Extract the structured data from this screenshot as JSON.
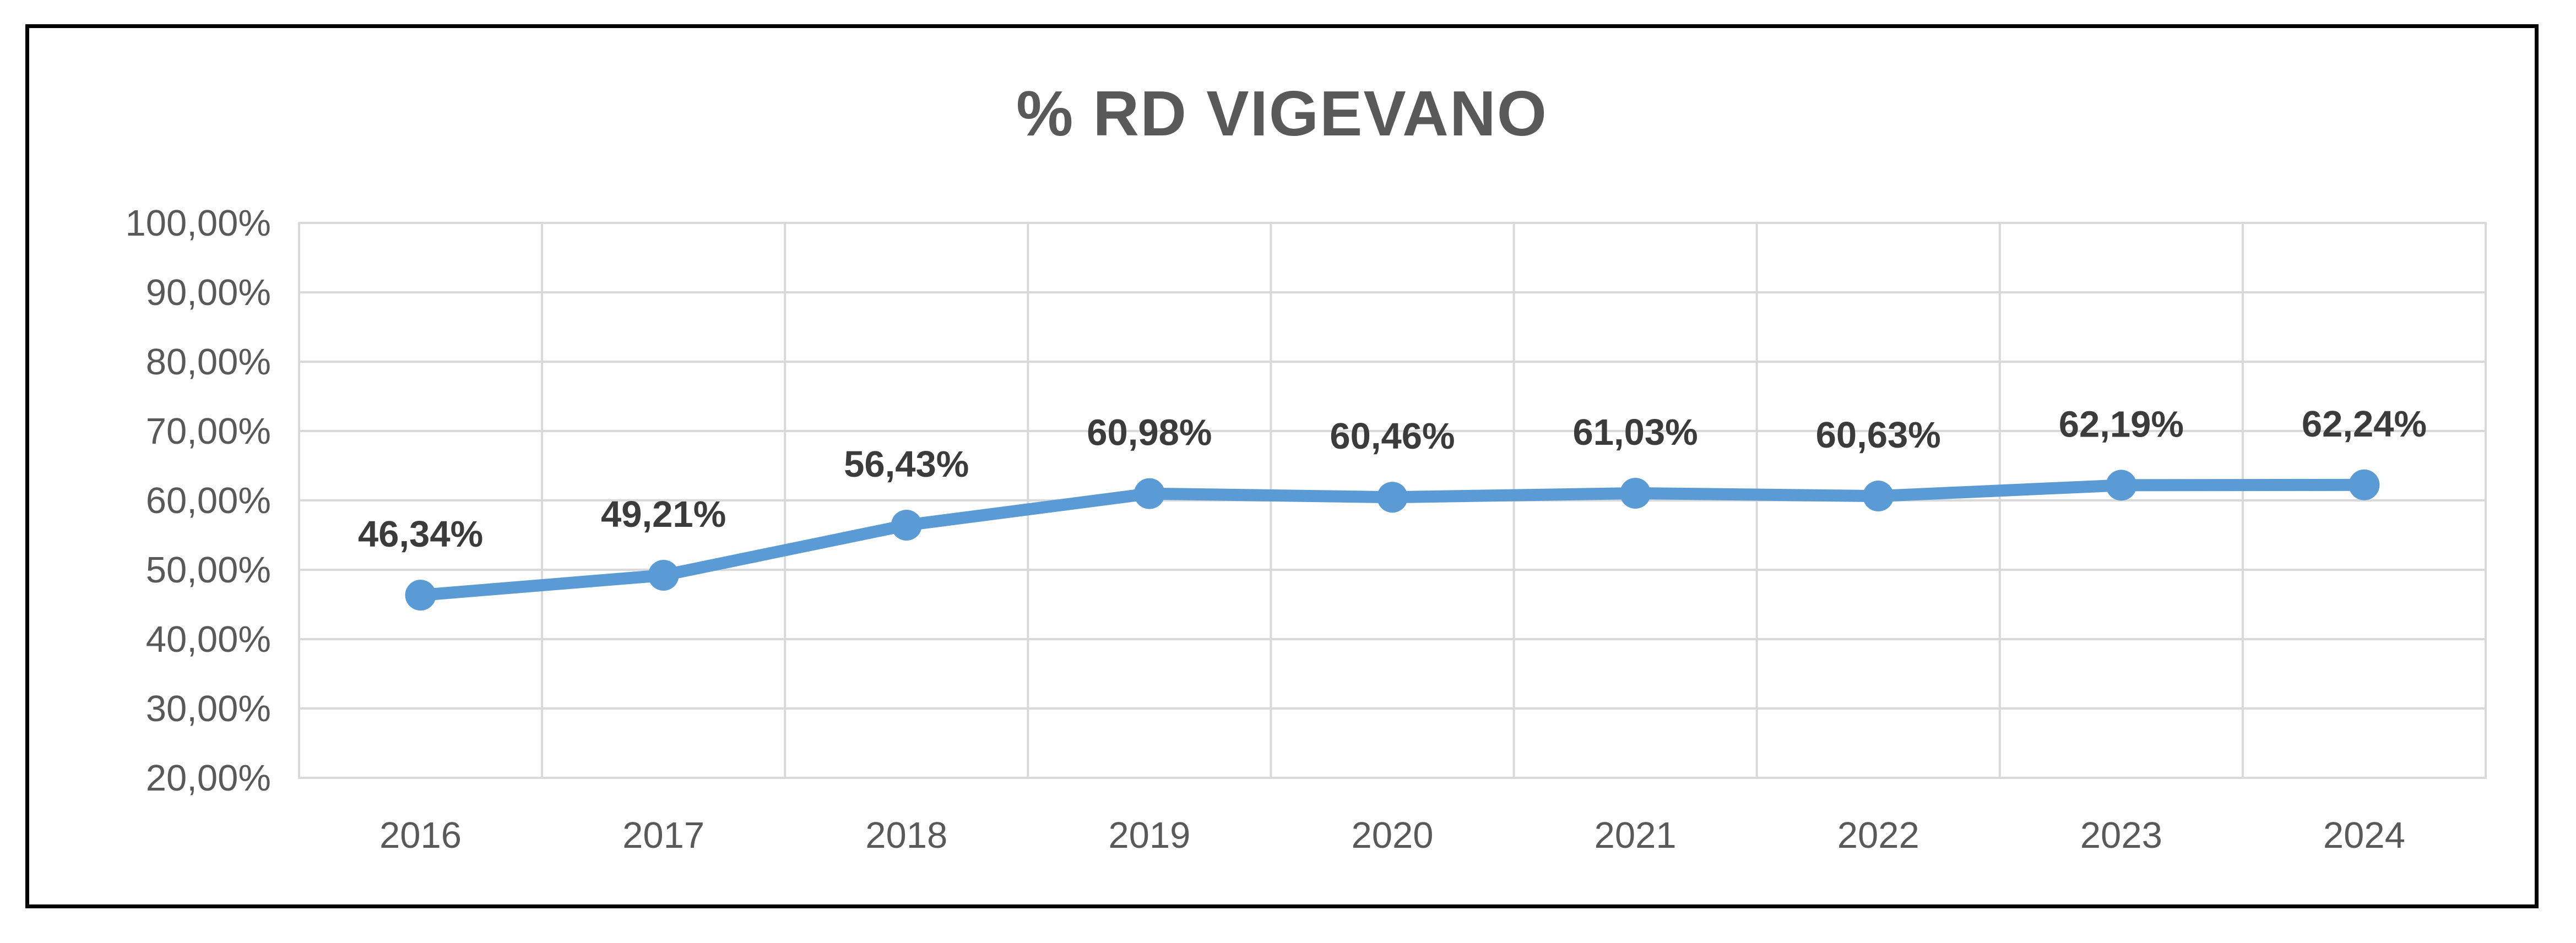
{
  "frame": {
    "border_color": "#000000",
    "background": "#ffffff"
  },
  "chart_data": {
    "type": "line",
    "title": "% RD VIGEVANO",
    "categories": [
      "2016",
      "2017",
      "2018",
      "2019",
      "2020",
      "2021",
      "2022",
      "2023",
      "2024"
    ],
    "series": [
      {
        "values": [
          46.34,
          49.21,
          56.43,
          60.98,
          60.46,
          61.03,
          60.63,
          62.19,
          62.24
        ],
        "point_labels": [
          "46,34%",
          "49,21%",
          "56,43%",
          "60,98%",
          "60,46%",
          "61,03%",
          "60,63%",
          "62,19%",
          "62,24%"
        ],
        "color": "#5B9BD5",
        "marker": "circle",
        "label_position": "above"
      }
    ],
    "y_axis": {
      "min": 20,
      "max": 100,
      "tick_values": [
        100,
        90,
        80,
        70,
        60,
        50,
        40,
        30,
        20
      ],
      "tick_labels": [
        "100,00%",
        "90,00%",
        "80,00%",
        "70,00%",
        "60,00%",
        "50,00%",
        "40,00%",
        "30,00%",
        "20,00%"
      ]
    },
    "xlabel": "",
    "ylabel": "",
    "legend": "none",
    "grid": {
      "horizontal": true,
      "vertical": true,
      "color": "#D9D9D9"
    },
    "title_color": "#595959",
    "axis_label_color": "#595959",
    "data_label_color": "#3b3b3b"
  }
}
